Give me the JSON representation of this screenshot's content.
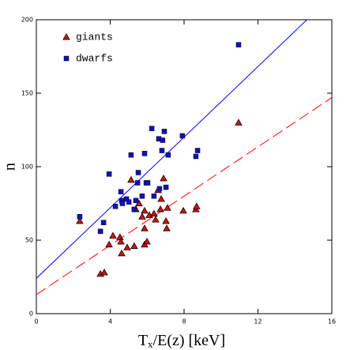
{
  "chart_data": {
    "type": "scatter",
    "xlabel": [
      "T",
      "x",
      "/E(z) [keV]"
    ],
    "ylabel": "n",
    "xlim": [
      0,
      16
    ],
    "ylim": [
      0,
      200
    ],
    "xticks": [
      0,
      4,
      8,
      12,
      16
    ],
    "yticks": [
      0,
      50,
      100,
      150,
      200
    ],
    "legend": "upper left",
    "series": [
      {
        "name": "giants",
        "color": "#cc1111",
        "marker": "triangle",
        "x": [
          2.35,
          3.47,
          3.68,
          3.94,
          4.15,
          4.53,
          4.58,
          4.62,
          4.92,
          5.3,
          5.13,
          5.39,
          5.56,
          5.73,
          5.86,
          5.86,
          5.86,
          5.99,
          6.12,
          6.37,
          6.46,
          6.59,
          6.72,
          6.76,
          6.89,
          7.02,
          7.06,
          7.1,
          7.96,
          8.64,
          8.68,
          10.95
        ],
        "values": [
          63,
          27,
          28,
          47,
          53,
          52,
          49,
          41,
          45,
          46,
          91,
          71,
          75,
          66,
          70,
          58,
          47,
          49,
          67,
          68,
          64,
          84,
          71,
          78,
          92,
          63,
          58,
          72,
          70,
          71,
          73,
          130
        ]
      },
      {
        "name": "dwarfs",
        "color": "#1111bb",
        "marker": "square",
        "x": [
          2.35,
          3.47,
          3.64,
          3.94,
          4.28,
          4.58,
          4.62,
          4.66,
          4.88,
          5.01,
          5.13,
          5.3,
          5.39,
          5.48,
          5.52,
          5.73,
          5.86,
          5.95,
          6.03,
          6.25,
          6.37,
          6.63,
          6.67,
          6.8,
          6.84,
          6.93,
          7.02,
          7.14,
          7.91,
          8.64,
          8.73,
          10.95
        ],
        "values": [
          66,
          56,
          62,
          95,
          73,
          83,
          77,
          75,
          78,
          76,
          108,
          71,
          77,
          89,
          96,
          80,
          109,
          89,
          89,
          126,
          80,
          119,
          85,
          111,
          118,
          124,
          86,
          108,
          121,
          107,
          111,
          183
        ]
      }
    ],
    "fits": [
      {
        "color": "#0000ff",
        "dash": "solid",
        "x": [
          0,
          14.65
        ],
        "values": [
          24,
          200
        ]
      },
      {
        "color": "#ff0000",
        "dash": "dashed",
        "x": [
          0,
          16
        ],
        "values": [
          13,
          147
        ]
      }
    ]
  }
}
